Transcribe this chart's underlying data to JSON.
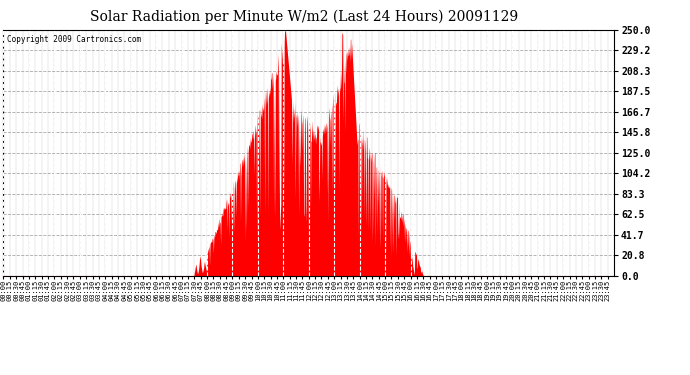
{
  "title": "Solar Radiation per Minute W/m2 (Last 24 Hours) 20091129",
  "copyright_text": "Copyright 2009 Cartronics.com",
  "bar_color": "#ff0000",
  "background_color": "#ffffff",
  "grid_color_h": "#cccccc",
  "grid_color_v": "#cccccc",
  "dashed_line_color": "#ff0000",
  "ylim": [
    0,
    250
  ],
  "yticks": [
    0.0,
    20.8,
    41.7,
    62.5,
    83.3,
    104.2,
    125.0,
    145.8,
    166.7,
    187.5,
    208.3,
    229.2,
    250.0
  ],
  "title_fontsize": 11,
  "tick_fontsize": 6,
  "minutes_per_day": 1440
}
